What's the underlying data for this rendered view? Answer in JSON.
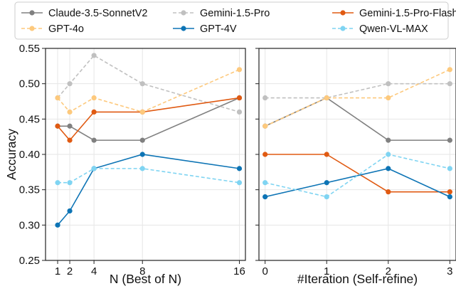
{
  "chart_data": [
    {
      "type": "line",
      "xlabel": "N (Best of N)",
      "ylabel": "Accuracy",
      "x": [
        1,
        2,
        4,
        8,
        16
      ],
      "x_ticks": [
        "1",
        "2",
        "4",
        "8",
        "16"
      ],
      "xlim": [
        0,
        16.5
      ],
      "ylim": [
        0.25,
        0.55
      ],
      "y_ticks": [
        "0.25",
        "0.30",
        "0.35",
        "0.40",
        "0.45",
        "0.50",
        "0.55"
      ],
      "grid": true,
      "series": [
        {
          "name": "Claude-3.5-SonnetV2",
          "values": [
            0.44,
            0.44,
            0.42,
            0.42,
            0.48
          ]
        },
        {
          "name": "Gemini-1.5-Pro",
          "values": [
            0.48,
            0.5,
            0.54,
            0.5,
            0.46
          ]
        },
        {
          "name": "Gemini-1.5-Pro-Flash",
          "values": [
            0.44,
            0.42,
            0.46,
            0.46,
            0.48
          ]
        },
        {
          "name": "GPT-4o",
          "values": [
            0.48,
            0.46,
            0.48,
            0.46,
            0.52
          ]
        },
        {
          "name": "GPT-4V",
          "values": [
            0.3,
            0.32,
            0.38,
            0.4,
            0.38
          ]
        },
        {
          "name": "Qwen-VL-MAX",
          "values": [
            0.36,
            0.36,
            0.38,
            0.38,
            0.36
          ]
        }
      ]
    },
    {
      "type": "line",
      "xlabel": "#Iteration (Self-refine)",
      "ylabel": "",
      "x": [
        0,
        1,
        2,
        3
      ],
      "x_ticks": [
        "0",
        "1",
        "2",
        "3"
      ],
      "xlim": [
        -0.1,
        3.1
      ],
      "ylim": [
        0.25,
        0.55
      ],
      "grid": true,
      "series": [
        {
          "name": "Claude-3.5-SonnetV2",
          "values": [
            0.44,
            0.48,
            0.42,
            0.42
          ]
        },
        {
          "name": "Gemini-1.5-Pro",
          "values": [
            0.48,
            0.48,
            0.5,
            0.5
          ]
        },
        {
          "name": "Gemini-1.5-Pro-Flash",
          "values": [
            0.4,
            0.4,
            0.347,
            0.347
          ]
        },
        {
          "name": "GPT-4o",
          "values": [
            0.44,
            0.48,
            0.48,
            0.52
          ]
        },
        {
          "name": "GPT-4V",
          "values": [
            0.34,
            0.36,
            0.38,
            0.34
          ]
        },
        {
          "name": "Qwen-VL-MAX",
          "values": [
            0.36,
            0.34,
            0.4,
            0.38
          ]
        }
      ]
    }
  ],
  "legend": {
    "placement": "top",
    "items": [
      {
        "name": "Claude-3.5-SonnetV2",
        "color": "#808080",
        "dashed": false
      },
      {
        "name": "Gemini-1.5-Pro",
        "color": "#c0c0c0",
        "dashed": true
      },
      {
        "name": "Gemini-1.5-Pro-Flash",
        "color": "#e05a12",
        "dashed": false
      },
      {
        "name": "GPT-4o",
        "color": "#fdc97d",
        "dashed": true
      },
      {
        "name": "GPT-4V",
        "color": "#0d74b5",
        "dashed": false
      },
      {
        "name": "Qwen-VL-MAX",
        "color": "#7fd4f2",
        "dashed": true
      }
    ]
  },
  "colors": {
    "Claude-3.5-SonnetV2": "#808080",
    "Gemini-1.5-Pro": "#c0c0c0",
    "Gemini-1.5-Pro-Flash": "#e05a12",
    "GPT-4o": "#fdc97d",
    "GPT-4V": "#0d74b5",
    "Qwen-VL-MAX": "#7fd4f2"
  }
}
